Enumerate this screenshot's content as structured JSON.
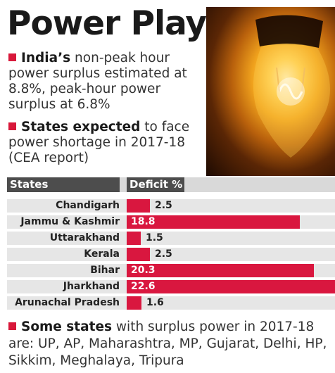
{
  "title": "Power Play",
  "colors": {
    "accent": "#d8183a",
    "bar": "#d9173f",
    "header_bg": "#4d4d4d",
    "row_bg": "#e6e6e6"
  },
  "bullets": [
    {
      "bold": "India’s",
      "text": " non-peak hour power surplus estimated at 8.8%, peak-hour power surplus at 6.8%"
    },
    {
      "bold": "States expected",
      "text": " to face power shortage in 2017-18 (CEA report)"
    }
  ],
  "footer": {
    "bold": "Some states",
    "text": " with surplus power in 2017-18 are: UP, AP, Maharashtra, MP, Gujarat, Delhi, HP, Sikkim, Meghalaya, Tripura"
  },
  "chart_data": {
    "type": "bar",
    "orientation": "horizontal",
    "column_headers": [
      "States",
      "Deficit %"
    ],
    "categories": [
      "Chandigarh",
      "Jammu & Kashmir",
      "Uttarakhand",
      "Kerala",
      "Bihar",
      "Jharkhand",
      "Arunachal Pradesh"
    ],
    "values": [
      2.5,
      18.8,
      1.5,
      2.5,
      20.3,
      22.6,
      1.6
    ],
    "value_labels": [
      "2.5",
      "18.8",
      "1.5",
      "2.5",
      "20.3",
      "22.6",
      "1.6"
    ],
    "xlim": [
      0,
      22.6
    ],
    "grid": false,
    "legend": "none"
  }
}
